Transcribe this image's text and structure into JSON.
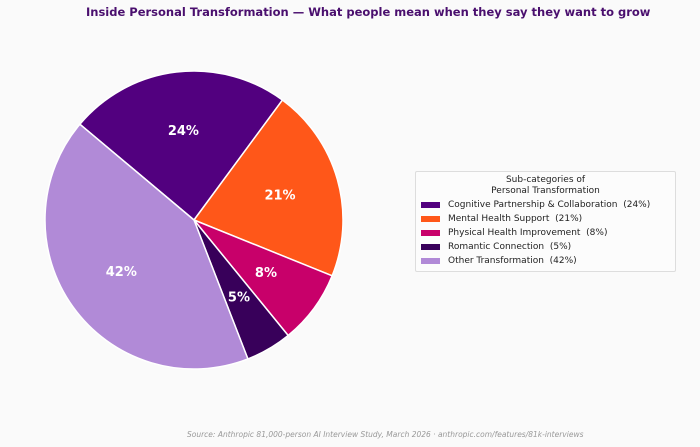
{
  "chart_data": {
    "type": "pie",
    "title": "Inside Personal Transformation — What people mean when they say they want to grow",
    "start_angle_deg": 140,
    "direction": "clockwise",
    "slices": [
      {
        "label": "Cognitive Partnership & Collaboration",
        "value": 24,
        "data_label": "24%",
        "legend_label": "Cognitive Partnership & Collaboration  (24%)",
        "color": "#52007f"
      },
      {
        "label": "Mental Health Support",
        "value": 21,
        "data_label": "21%",
        "legend_label": "Mental Health Support  (21%)",
        "color": "#ff5719"
      },
      {
        "label": "Physical Health Improvement",
        "value": 8,
        "data_label": "8%",
        "legend_label": "Physical Health Improvement  (8%)",
        "color": "#c8006a"
      },
      {
        "label": "Romantic Connection",
        "value": 5,
        "data_label": "5%",
        "legend_label": "Romantic Connection  (5%)",
        "color": "#38005a"
      },
      {
        "label": "Other Transformation",
        "value": 42,
        "data_label": "42%",
        "legend_label": "Other Transformation  (42%)",
        "color": "#b18ad7"
      }
    ],
    "legend": {
      "title_line1": "Sub-categories of",
      "title_line2": "Personal Transformation",
      "placement": "right"
    }
  },
  "source": "Source: Anthropic 81,000-person AI Interview Study, March 2026  ·  anthropic.com/features/81k-interviews"
}
